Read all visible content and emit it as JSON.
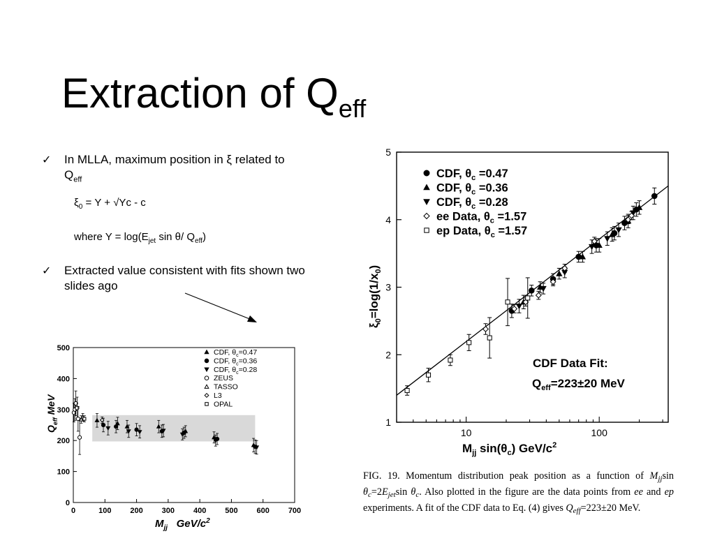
{
  "slide": {
    "title_main": "Extraction of Q",
    "title_sub": "eff",
    "bullet1_line1": "In MLLA, maximum position in ξ related to",
    "bullet1_q": "Q",
    "bullet1_q_sub": "eff",
    "eq1_xi": "ξ",
    "eq1_xi_sub": "0",
    "eq1_rest": " = Y + √Yc - c",
    "eq2_pre": "where Y = log(E",
    "eq2_jet_sub": "jet",
    "eq2_mid": " sin θ/ Q",
    "eq2_eff_sub": "eff",
    "eq2_post": ")",
    "bullet2": "Extracted value consistent with fits shown two slides ago"
  },
  "right_plot": {
    "legend": [
      {
        "marker": "filled-circle",
        "label": "CDF, θ",
        "sub": "c",
        "value": " =0.47"
      },
      {
        "marker": "filled-triangle-up",
        "label": "CDF, θ",
        "sub": "c",
        "value": " =0.36"
      },
      {
        "marker": "filled-triangle-down",
        "label": "CDF, θ",
        "sub": "c",
        "value": " =0.28"
      },
      {
        "marker": "open-diamond",
        "label": "ee Data, θ",
        "sub": "c",
        "value": " =1.57"
      },
      {
        "marker": "open-square",
        "label": "ep Data, θ",
        "sub": "c",
        "value": " =1.57"
      }
    ],
    "fit_title": "CDF Data Fit:",
    "fit_q": "Q",
    "fit_q_sub": "eff",
    "fit_value": "=223±20  MeV",
    "ylabel_xi": "ξ",
    "ylabel_sub": "0",
    "ylabel_rest": "=log(1/x",
    "ylabel_x_sub": "0",
    "ylabel_close": ")",
    "xlabel_m": "M",
    "xlabel_m_sub": "jj",
    "xlabel_rest": " sin(θ",
    "xlabel_c_sub": "c",
    "xlabel_post": ") GeV/c",
    "xlabel_sup": "2",
    "caption_html": "FIG. 19. Momentum distribution peak position as a function of <i>M</i><sub class=\"s\"><i>jj</i></sub>sin <i>θ</i><sub class=\"s\"><i>c</i></sub>=2<i>E</i><sub class=\"s\"><i>jet</i></sub>sin <i>θ</i><sub class=\"s\"><i>c</i></sub>. Also plotted in the figure are the data points from <i>ee</i> and <i>ep</i> experiments. A fit of the CDF data to Eq. (4) gives <i>Q</i><sub class=\"s\"><i>eff</i></sub>=223±20 MeV."
  },
  "left_plot": {
    "legend": [
      {
        "marker": "filled-triangle-up",
        "label": "CDF, θ",
        "sub": "c",
        "value": "=0.47"
      },
      {
        "marker": "filled-circle",
        "label": "CDF, θ",
        "sub": "c",
        "value": "=0.36"
      },
      {
        "marker": "filled-triangle-down",
        "label": "CDF, θ",
        "sub": "c",
        "value": "=0.28"
      },
      {
        "marker": "open-circle",
        "label": "ZEUS",
        "sub": "",
        "value": ""
      },
      {
        "marker": "open-triangle",
        "label": "TASSO",
        "sub": "",
        "value": ""
      },
      {
        "marker": "open-diamond",
        "label": "L3",
        "sub": "",
        "value": ""
      },
      {
        "marker": "open-square",
        "label": "OPAL",
        "sub": "",
        "value": ""
      }
    ],
    "ylabel_q": "Q",
    "ylabel_sub": "eff",
    "ylabel_unit": " MeV",
    "xlabel_m": "M",
    "xlabel_sub": "jj",
    "xlabel_unit": "   GeV/c",
    "xlabel_sup": "2"
  },
  "chart_data": [
    {
      "type": "scatter",
      "title": "",
      "xlabel": "Mjj sin(θc) GeV/c2",
      "ylabel": "ξ0=log(1/x0)",
      "xscale": "log",
      "x_ticks": [
        10,
        100
      ],
      "y_ticks": [
        1,
        2,
        3,
        4,
        5
      ],
      "xlim": [
        3,
        330
      ],
      "ylim": [
        1,
        5
      ],
      "fit_line": {
        "x": [
          3,
          330
        ],
        "y": [
          1.4,
          4.5
        ]
      },
      "series": [
        {
          "name": "CDF, θc =0.47",
          "marker": "filled-circle",
          "x": [
            22,
            31,
            45,
            70,
            95,
            130,
            155,
            190,
            260
          ],
          "y": [
            2.65,
            2.95,
            3.12,
            3.45,
            3.62,
            3.8,
            3.95,
            4.15,
            4.35
          ],
          "err": [
            0.1,
            0.08,
            0.08,
            0.08,
            0.1,
            0.1,
            0.1,
            0.1,
            0.12
          ]
        },
        {
          "name": "CDF, θc =0.36",
          "marker": "filled-triangle-up",
          "x": [
            27,
            36,
            50,
            75,
            100,
            125,
            165,
            200
          ],
          "y": [
            2.78,
            3.0,
            3.2,
            3.45,
            3.62,
            3.78,
            3.98,
            4.18
          ],
          "err": [
            0.1,
            0.08,
            0.08,
            0.08,
            0.1,
            0.1,
            0.1,
            0.1
          ]
        },
        {
          "name": "CDF, θc =0.28",
          "marker": "filled-triangle-down",
          "x": [
            25,
            38,
            55,
            88,
            115,
            140,
            180
          ],
          "y": [
            2.72,
            2.98,
            3.22,
            3.6,
            3.72,
            3.85,
            4.1
          ],
          "err": [
            0.1,
            0.08,
            0.08,
            0.1,
            0.1,
            0.1,
            0.1
          ]
        },
        {
          "name": "ee Data, θc =1.57",
          "marker": "open-diamond",
          "x": [
            14,
            23,
            28,
            35,
            45,
            55,
            92,
            165,
            175
          ],
          "y": [
            2.38,
            2.68,
            2.78,
            2.88,
            3.08,
            3.28,
            3.68,
            4.0,
            4.06
          ],
          "err": [
            0.08,
            0.06,
            0.06,
            0.06,
            0.06,
            0.06,
            0.06,
            0.06,
            0.06
          ]
        },
        {
          "name": "ep Data, θc =1.57",
          "marker": "open-square",
          "x": [
            3.6,
            5.2,
            7.6,
            10.5,
            15,
            20.5,
            29
          ],
          "y": [
            1.47,
            1.7,
            1.92,
            2.18,
            2.25,
            2.78,
            2.84
          ],
          "err": [
            0.07,
            0.1,
            0.08,
            0.12,
            0.3,
            0.35,
            0.3
          ]
        }
      ]
    },
    {
      "type": "scatter",
      "title": "",
      "xlabel": "Mjj GeV/c2",
      "ylabel": "Qeff MeV",
      "x_ticks": [
        0,
        100,
        200,
        300,
        400,
        500,
        600,
        700
      ],
      "y_ticks": [
        0,
        100,
        200,
        300,
        400,
        500
      ],
      "xlim": [
        0,
        700
      ],
      "ylim": [
        0,
        500
      ],
      "band": {
        "x": [
          60,
          575
        ],
        "y": [
          197,
          282
        ]
      },
      "series": [
        {
          "name": "CDF, θc=0.47",
          "marker": "filled-triangle-up",
          "x": [
            75,
            140,
            170,
            270,
            355,
            445,
            570
          ],
          "y": [
            265,
            255,
            245,
            245,
            230,
            210,
            185
          ],
          "err": [
            22,
            20,
            20,
            20,
            18,
            18,
            22
          ]
        },
        {
          "name": "CDF, θc=0.36",
          "marker": "filled-circle",
          "x": [
            95,
            135,
            200,
            280,
            350,
            455,
            575
          ],
          "y": [
            250,
            245,
            235,
            230,
            225,
            205,
            180
          ],
          "err": [
            22,
            20,
            20,
            20,
            18,
            18,
            22
          ]
        },
        {
          "name": "CDF, θc=0.28",
          "marker": "filled-triangle-down",
          "x": [
            110,
            175,
            210,
            285,
            345,
            450,
            580
          ],
          "y": [
            240,
            230,
            228,
            232,
            220,
            200,
            178
          ],
          "err": [
            22,
            20,
            20,
            20,
            18,
            18,
            22
          ]
        },
        {
          "name": "ZEUS",
          "marker": "open-circle",
          "x": [
            2,
            5,
            8,
            12,
            15,
            20
          ],
          "y": [
            290,
            300,
            320,
            305,
            270,
            210
          ],
          "err": [
            30,
            35,
            40,
            35,
            40,
            55
          ]
        },
        {
          "name": "TASSO",
          "marker": "open-triangle",
          "x": [
            25,
            30
          ],
          "y": [
            268,
            275
          ],
          "err": [
            12,
            12
          ]
        },
        {
          "name": "L3",
          "marker": "open-diamond",
          "x": [
            91
          ],
          "y": [
            266
          ],
          "err": [
            10
          ]
        },
        {
          "name": "OPAL",
          "marker": "open-square",
          "x": [
            35
          ],
          "y": [
            270
          ],
          "err": [
            10
          ]
        }
      ]
    }
  ]
}
